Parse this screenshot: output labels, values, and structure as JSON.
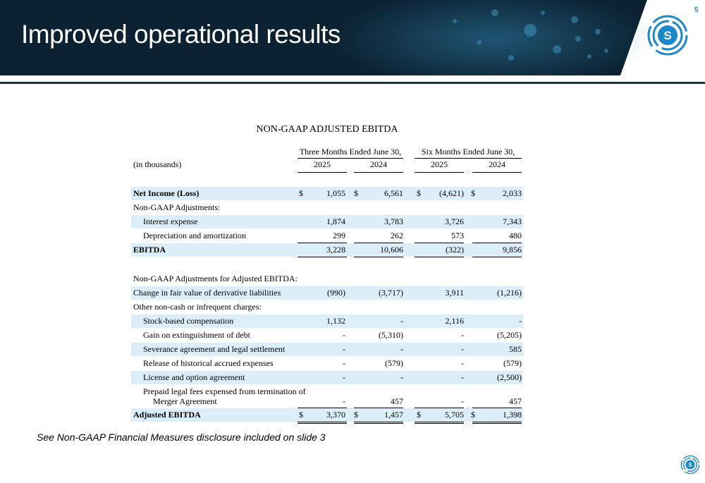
{
  "slide": {
    "title": "Improved operational results",
    "page_number": "5",
    "footnote": "See Non-GAAP Financial Measures disclosure included on slide 3",
    "colors": {
      "header_bg": "#0c2233",
      "accent": "#1a88c9",
      "row_shade": "#dceef9"
    },
    "logo_icon": "company-s-logo-icon"
  },
  "table": {
    "title": "NON-GAAP ADJUSTED EBITDA",
    "period_headers": [
      "Three Months Ended June 30,",
      "Six Months Ended June 30,"
    ],
    "units_label": "(in thousands)",
    "years": [
      "2025",
      "2024",
      "2025",
      "2024"
    ],
    "rows": [
      {
        "label": "Net Income (Loss)",
        "values": [
          "1,055",
          "6,561",
          "(4,621)",
          "2,033"
        ],
        "dollar": true
      },
      {
        "label": "Non-GAAP Adjustments:"
      },
      {
        "label": "Interest expense",
        "values": [
          "1,874",
          "3,783",
          "3,726",
          "7,343"
        ]
      },
      {
        "label": "Depreciation and amortization",
        "values": [
          "299",
          "262",
          "573",
          "480"
        ]
      },
      {
        "label": "EBITDA",
        "values": [
          "3,228",
          "10,606",
          "(322)",
          "9,856"
        ]
      },
      {
        "label": "Non-GAAP Adjustments for Adjusted EBITDA:"
      },
      {
        "label": "Change in fair value of derivative liabilities",
        "values": [
          "(990)",
          "(3,717)",
          "3,911",
          "(1,216)"
        ]
      },
      {
        "label": "Other non-cash or infrequent charges:"
      },
      {
        "label": "Stock-based compensation",
        "values": [
          "1,132",
          "-",
          "2,116",
          "-"
        ]
      },
      {
        "label": "Gain on extinguishment of debt",
        "values": [
          "-",
          "(5,310)",
          "-",
          "(5,205)"
        ]
      },
      {
        "label": "Severance agreement and legal settlement",
        "values": [
          "-",
          "-",
          "-",
          "585"
        ]
      },
      {
        "label": "Release of historical accrued expenses",
        "values": [
          "-",
          "(579)",
          "-",
          "(579)"
        ]
      },
      {
        "label": "License and option agreement",
        "values": [
          "-",
          "-",
          "-",
          "(2,500)"
        ]
      },
      {
        "label": "Prepaid legal fees expensed from termination of",
        "label2": "Merger Agreement",
        "values": [
          "-",
          "457",
          "-",
          "457"
        ]
      },
      {
        "label": "Adjusted EBITDA",
        "values": [
          "3,370",
          "1,457",
          "5,705",
          "1,398"
        ],
        "dollar": true
      }
    ],
    "dollar_sign": "$"
  }
}
